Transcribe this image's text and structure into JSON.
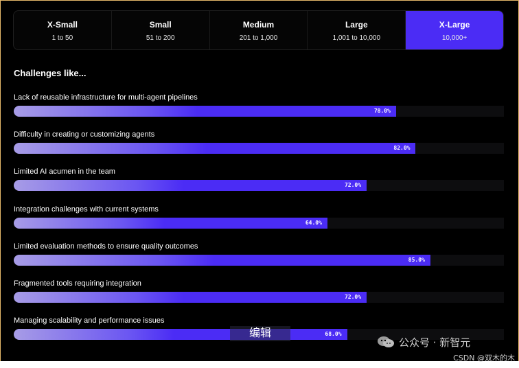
{
  "tabs": [
    {
      "title": "X-Small",
      "range": "1 to 50",
      "active": false
    },
    {
      "title": "Small",
      "range": "51 to 200",
      "active": false
    },
    {
      "title": "Medium",
      "range": "201 to 1,000",
      "active": false
    },
    {
      "title": "Large",
      "range": "1,001 to 10,000",
      "active": false
    },
    {
      "title": "X-Large",
      "range": "10,000+",
      "active": true
    }
  ],
  "heading": "Challenges like...",
  "challenges": [
    {
      "label": "Lack of reusable infrastructure for multi-agent pipelines",
      "value": 78.0,
      "display": "78.0%"
    },
    {
      "label": "Difficulty in creating or customizing agents",
      "value": 82.0,
      "display": "82.0%"
    },
    {
      "label": "Limited AI acumen in the team",
      "value": 72.0,
      "display": "72.0%"
    },
    {
      "label": "Integration challenges with current systems",
      "value": 64.0,
      "display": "64.0%"
    },
    {
      "label": "Limited evaluation methods to ensure quality outcomes",
      "value": 85.0,
      "display": "85.0%"
    },
    {
      "label": "Fragmented tools requiring integration",
      "value": 72.0,
      "display": "72.0%"
    },
    {
      "label": "Managing scalability and performance issues",
      "value": 68.0,
      "display": "68.0%"
    }
  ],
  "overlay": {
    "edit_label": "编辑"
  },
  "watermark": {
    "text": "公众号 · 新智元",
    "icon": "wechat-icon"
  },
  "credit": "CSDN @双木的木",
  "colors": {
    "accent": "#4b2cf5",
    "background": "#000000"
  }
}
